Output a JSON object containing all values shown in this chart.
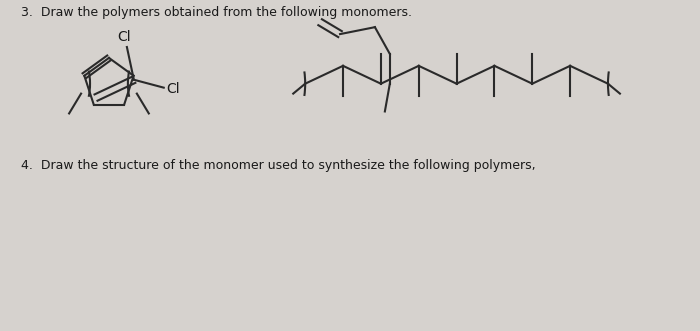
{
  "bg_color": "#d6d2ce",
  "line_color": "#2a2a2a",
  "text_color": "#1a1a1a",
  "label3": "3.  Draw the polymers obtained from the following monomers.",
  "label4": "4.  Draw the structure of the monomer used to synthesize the following polymers,",
  "lw": 1.5,
  "fontsize_label": 9.0,
  "fontsize_cl": 10.0
}
